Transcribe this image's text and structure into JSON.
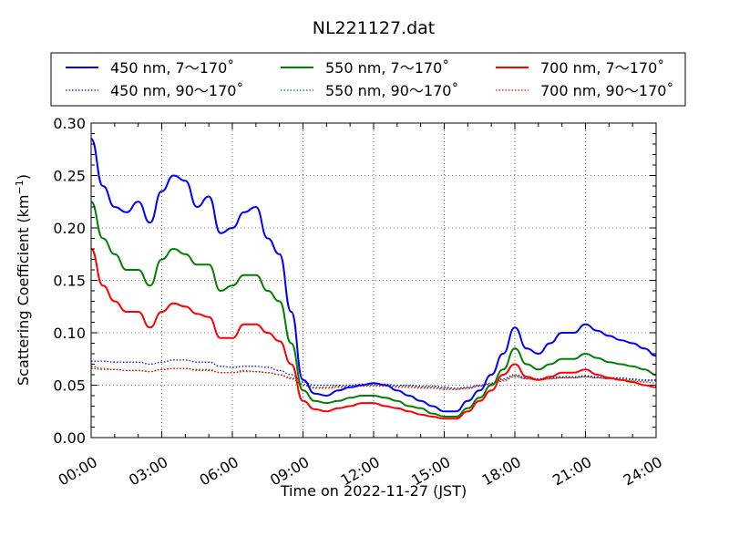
{
  "chart_data": {
    "type": "line",
    "title": "NL221127.dat",
    "xlabel": "Time on 2022-11-27 (JST)",
    "ylabel": "Scattering Coefficient (km",
    "ylabel_sup": "−1",
    "ylabel_end": ")",
    "xlim": [
      0,
      24
    ],
    "ylim": [
      0,
      0.3
    ],
    "x_ticks": [
      0,
      3,
      6,
      9,
      12,
      15,
      18,
      21,
      24
    ],
    "x_tick_labels": [
      "00:00",
      "03:00",
      "06:00",
      "09:00",
      "12:00",
      "15:00",
      "18:00",
      "21:00",
      "24:00"
    ],
    "y_ticks": [
      0,
      0.05,
      0.1,
      0.15,
      0.2,
      0.25,
      0.3
    ],
    "y_tick_labels": [
      "0.00",
      "0.05",
      "0.10",
      "0.15",
      "0.20",
      "0.25",
      "0.30"
    ],
    "grid": true,
    "legend_position": "top, above plot",
    "x_hours": [
      0,
      0.5,
      1,
      1.5,
      2,
      2.5,
      3,
      3.5,
      4,
      4.5,
      5,
      5.5,
      6,
      6.5,
      7,
      7.5,
      8,
      8.5,
      9,
      9.5,
      10,
      10.5,
      11,
      11.5,
      12,
      12.5,
      13,
      13.5,
      14,
      14.5,
      15,
      15.5,
      16,
      16.5,
      17,
      17.5,
      18,
      18.5,
      19,
      19.5,
      20,
      20.5,
      21,
      21.5,
      22,
      22.5,
      23,
      23.5,
      24
    ],
    "series": [
      {
        "name": "450 nm, 7～170˚",
        "color": "#0000ff",
        "style": "solid",
        "values": [
          0.285,
          0.24,
          0.22,
          0.215,
          0.225,
          0.205,
          0.235,
          0.25,
          0.245,
          0.22,
          0.23,
          0.195,
          0.2,
          0.215,
          0.22,
          0.19,
          0.175,
          0.12,
          0.055,
          0.042,
          0.04,
          0.045,
          0.048,
          0.05,
          0.052,
          0.05,
          0.045,
          0.04,
          0.035,
          0.03,
          0.025,
          0.025,
          0.035,
          0.045,
          0.06,
          0.08,
          0.105,
          0.085,
          0.08,
          0.09,
          0.1,
          0.1,
          0.108,
          0.102,
          0.097,
          0.093,
          0.09,
          0.085,
          0.078
        ]
      },
      {
        "name": "550 nm, 7～170˚",
        "color": "#008000",
        "style": "solid",
        "values": [
          0.225,
          0.19,
          0.175,
          0.16,
          0.16,
          0.145,
          0.17,
          0.18,
          0.175,
          0.165,
          0.165,
          0.14,
          0.145,
          0.155,
          0.155,
          0.14,
          0.13,
          0.09,
          0.045,
          0.035,
          0.033,
          0.035,
          0.038,
          0.04,
          0.04,
          0.038,
          0.035,
          0.03,
          0.028,
          0.023,
          0.02,
          0.02,
          0.028,
          0.038,
          0.05,
          0.065,
          0.085,
          0.07,
          0.065,
          0.07,
          0.075,
          0.075,
          0.08,
          0.076,
          0.072,
          0.07,
          0.068,
          0.065,
          0.06
        ]
      },
      {
        "name": "700 nm, 7～170˚",
        "color": "#ff0000",
        "style": "solid",
        "values": [
          0.18,
          0.145,
          0.13,
          0.12,
          0.12,
          0.105,
          0.12,
          0.128,
          0.125,
          0.118,
          0.115,
          0.095,
          0.095,
          0.108,
          0.108,
          0.1,
          0.092,
          0.07,
          0.035,
          0.027,
          0.025,
          0.028,
          0.03,
          0.033,
          0.033,
          0.03,
          0.028,
          0.025,
          0.022,
          0.02,
          0.018,
          0.018,
          0.025,
          0.035,
          0.045,
          0.06,
          0.07,
          0.058,
          0.055,
          0.058,
          0.062,
          0.062,
          0.065,
          0.06,
          0.057,
          0.055,
          0.053,
          0.05,
          0.048
        ]
      },
      {
        "name": "450 nm, 90～170˚",
        "color": "#0000ff",
        "style": "dotted",
        "values": [
          0.073,
          0.073,
          0.072,
          0.072,
          0.072,
          0.07,
          0.072,
          0.074,
          0.074,
          0.072,
          0.072,
          0.068,
          0.067,
          0.068,
          0.068,
          0.067,
          0.064,
          0.06,
          0.053,
          0.05,
          0.05,
          0.05,
          0.05,
          0.051,
          0.051,
          0.051,
          0.05,
          0.05,
          0.049,
          0.049,
          0.048,
          0.047,
          0.048,
          0.05,
          0.052,
          0.056,
          0.06,
          0.057,
          0.056,
          0.057,
          0.058,
          0.058,
          0.059,
          0.058,
          0.057,
          0.057,
          0.056,
          0.055,
          0.055
        ]
      },
      {
        "name": "550 nm, 90～170˚",
        "color": "#008000",
        "style": "dotted",
        "values": [
          0.066,
          0.065,
          0.065,
          0.064,
          0.064,
          0.063,
          0.065,
          0.066,
          0.066,
          0.065,
          0.065,
          0.062,
          0.062,
          0.063,
          0.063,
          0.062,
          0.06,
          0.057,
          0.051,
          0.048,
          0.048,
          0.049,
          0.049,
          0.05,
          0.05,
          0.05,
          0.049,
          0.049,
          0.048,
          0.048,
          0.047,
          0.046,
          0.047,
          0.049,
          0.051,
          0.054,
          0.058,
          0.056,
          0.055,
          0.056,
          0.057,
          0.057,
          0.058,
          0.057,
          0.056,
          0.056,
          0.055,
          0.054,
          0.054
        ]
      },
      {
        "name": "700 nm, 90～170˚",
        "color": "#ff0000",
        "style": "dotted",
        "values": [
          0.068,
          0.066,
          0.065,
          0.064,
          0.064,
          0.063,
          0.065,
          0.066,
          0.066,
          0.064,
          0.064,
          0.062,
          0.062,
          0.064,
          0.063,
          0.062,
          0.06,
          0.056,
          0.05,
          0.047,
          0.047,
          0.048,
          0.048,
          0.049,
          0.049,
          0.049,
          0.048,
          0.048,
          0.047,
          0.047,
          0.046,
          0.046,
          0.047,
          0.049,
          0.051,
          0.055,
          0.059,
          0.056,
          0.055,
          0.056,
          0.057,
          0.057,
          0.058,
          0.057,
          0.056,
          0.055,
          0.054,
          0.053,
          0.052
        ]
      }
    ]
  }
}
